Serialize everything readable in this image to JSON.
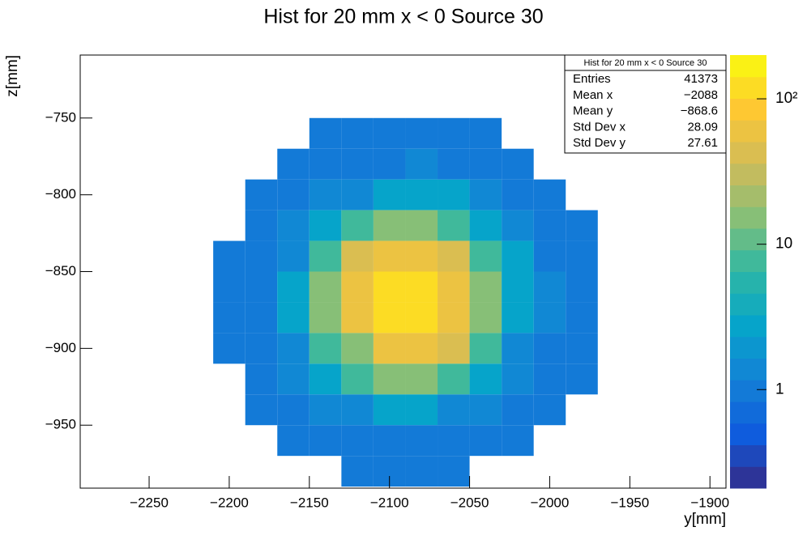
{
  "chart_data": {
    "type": "heatmap",
    "title": "Hist for 20 mm x < 0 Source 30",
    "x_label": "y[mm]",
    "y_label": "z[mm]",
    "xlim": [
      -2293,
      -1890
    ],
    "ylim": [
      -991,
      -709
    ],
    "zlim": [
      0.21,
      200
    ],
    "log_z": true,
    "xticks": [
      {
        "value": -2250,
        "label": "−2250"
      },
      {
        "value": -2200,
        "label": "−2200"
      },
      {
        "value": -2150,
        "label": "−2150"
      },
      {
        "value": -2100,
        "label": "−2100"
      },
      {
        "value": -2050,
        "label": "−2050"
      },
      {
        "value": -2000,
        "label": "−2000"
      },
      {
        "value": -1950,
        "label": "−1950"
      },
      {
        "value": -1900,
        "label": "−1900"
      }
    ],
    "yticks": [
      {
        "value": -950,
        "label": "−950"
      },
      {
        "value": -900,
        "label": "−900"
      },
      {
        "value": -850,
        "label": "−850"
      },
      {
        "value": -800,
        "label": "−800"
      },
      {
        "value": -750,
        "label": "−750"
      }
    ],
    "zticks": [
      1,
      10,
      {
        "value": 100,
        "label": "10²"
      }
    ],
    "palette": [
      "#352a87",
      "#0f5cdd",
      "#1481d6",
      "#06a4ca",
      "#2eb7a4",
      "#87bf77",
      "#d1bb59",
      "#fec832",
      "#f9fb0e"
    ],
    "xbins": [
      -2290,
      -2270,
      -2250,
      -2230,
      -2210,
      -2190,
      -2170,
      -2150,
      -2130,
      -2110,
      -2090,
      -2070,
      -2050,
      -2030,
      -2010,
      -1990,
      -1970,
      -1950,
      -1930,
      -1910,
      -1890
    ],
    "ybins": [
      -710,
      -730,
      -750,
      -770,
      -790,
      -810,
      -830,
      -850,
      -870,
      -890,
      -910,
      -930,
      -950,
      -970,
      -990
    ],
    "z": [
      [
        null,
        null,
        null,
        null,
        null,
        null,
        null,
        null,
        null,
        null,
        null,
        null,
        null,
        null,
        null,
        null,
        null,
        null,
        null,
        null
      ],
      [
        null,
        null,
        null,
        null,
        null,
        null,
        null,
        null,
        null,
        null,
        null,
        null,
        null,
        null,
        null,
        null,
        null,
        null,
        null,
        null
      ],
      [
        null,
        null,
        null,
        null,
        null,
        null,
        null,
        1,
        1,
        1,
        1,
        1,
        1,
        null,
        null,
        null,
        null,
        null,
        null,
        null
      ],
      [
        null,
        null,
        null,
        null,
        null,
        null,
        1,
        1,
        1,
        1,
        1.5,
        1,
        1,
        1,
        null,
        null,
        null,
        null,
        null,
        null
      ],
      [
        null,
        null,
        null,
        null,
        null,
        1,
        1,
        1.5,
        1.5,
        3,
        3,
        3,
        1.5,
        1,
        1,
        null,
        null,
        null,
        null,
        null
      ],
      [
        null,
        null,
        null,
        null,
        null,
        1,
        1.5,
        3,
        8,
        18,
        18,
        8,
        3,
        1.5,
        1,
        1,
        null,
        null,
        null,
        null
      ],
      [
        null,
        null,
        null,
        null,
        1,
        1,
        1.5,
        8,
        40,
        70,
        70,
        40,
        8,
        3,
        1,
        1,
        null,
        null,
        null,
        null
      ],
      [
        null,
        null,
        null,
        null,
        1,
        1,
        3,
        18,
        70,
        140,
        140,
        70,
        18,
        3,
        1.5,
        1,
        null,
        null,
        null,
        null
      ],
      [
        null,
        null,
        null,
        null,
        1,
        1,
        3,
        18,
        70,
        110,
        140,
        70,
        18,
        3,
        1.5,
        1,
        null,
        null,
        null,
        null
      ],
      [
        null,
        null,
        null,
        null,
        1,
        1,
        1.5,
        8,
        18,
        70,
        70,
        40,
        8,
        1.5,
        1,
        1,
        null,
        null,
        null,
        null
      ],
      [
        null,
        null,
        null,
        null,
        null,
        1,
        1.5,
        3,
        8,
        18,
        18,
        8,
        3,
        1.5,
        1,
        1,
        null,
        null,
        null,
        null
      ],
      [
        null,
        null,
        null,
        null,
        null,
        1,
        1,
        1.5,
        1.5,
        3,
        3,
        1.5,
        1.5,
        1,
        1,
        null,
        null,
        null,
        null,
        null
      ],
      [
        null,
        null,
        null,
        null,
        null,
        null,
        1,
        1,
        1,
        1,
        1,
        1,
        1,
        1,
        null,
        null,
        null,
        null,
        null,
        null
      ],
      [
        null,
        null,
        null,
        null,
        null,
        null,
        null,
        null,
        1,
        1,
        1,
        1,
        null,
        null,
        null,
        null,
        null,
        null,
        null,
        null
      ]
    ],
    "stats": {
      "title": "Hist for 20 mm x < 0 Source 30",
      "rows": [
        {
          "label": "Entries",
          "value": "41373"
        },
        {
          "label": "Mean x",
          "value": "−2088"
        },
        {
          "label": "Mean y",
          "value": "−868.6"
        },
        {
          "label": "Std Dev x",
          "value": "28.09"
        },
        {
          "label": "Std Dev y",
          "value": "27.61"
        }
      ]
    }
  }
}
